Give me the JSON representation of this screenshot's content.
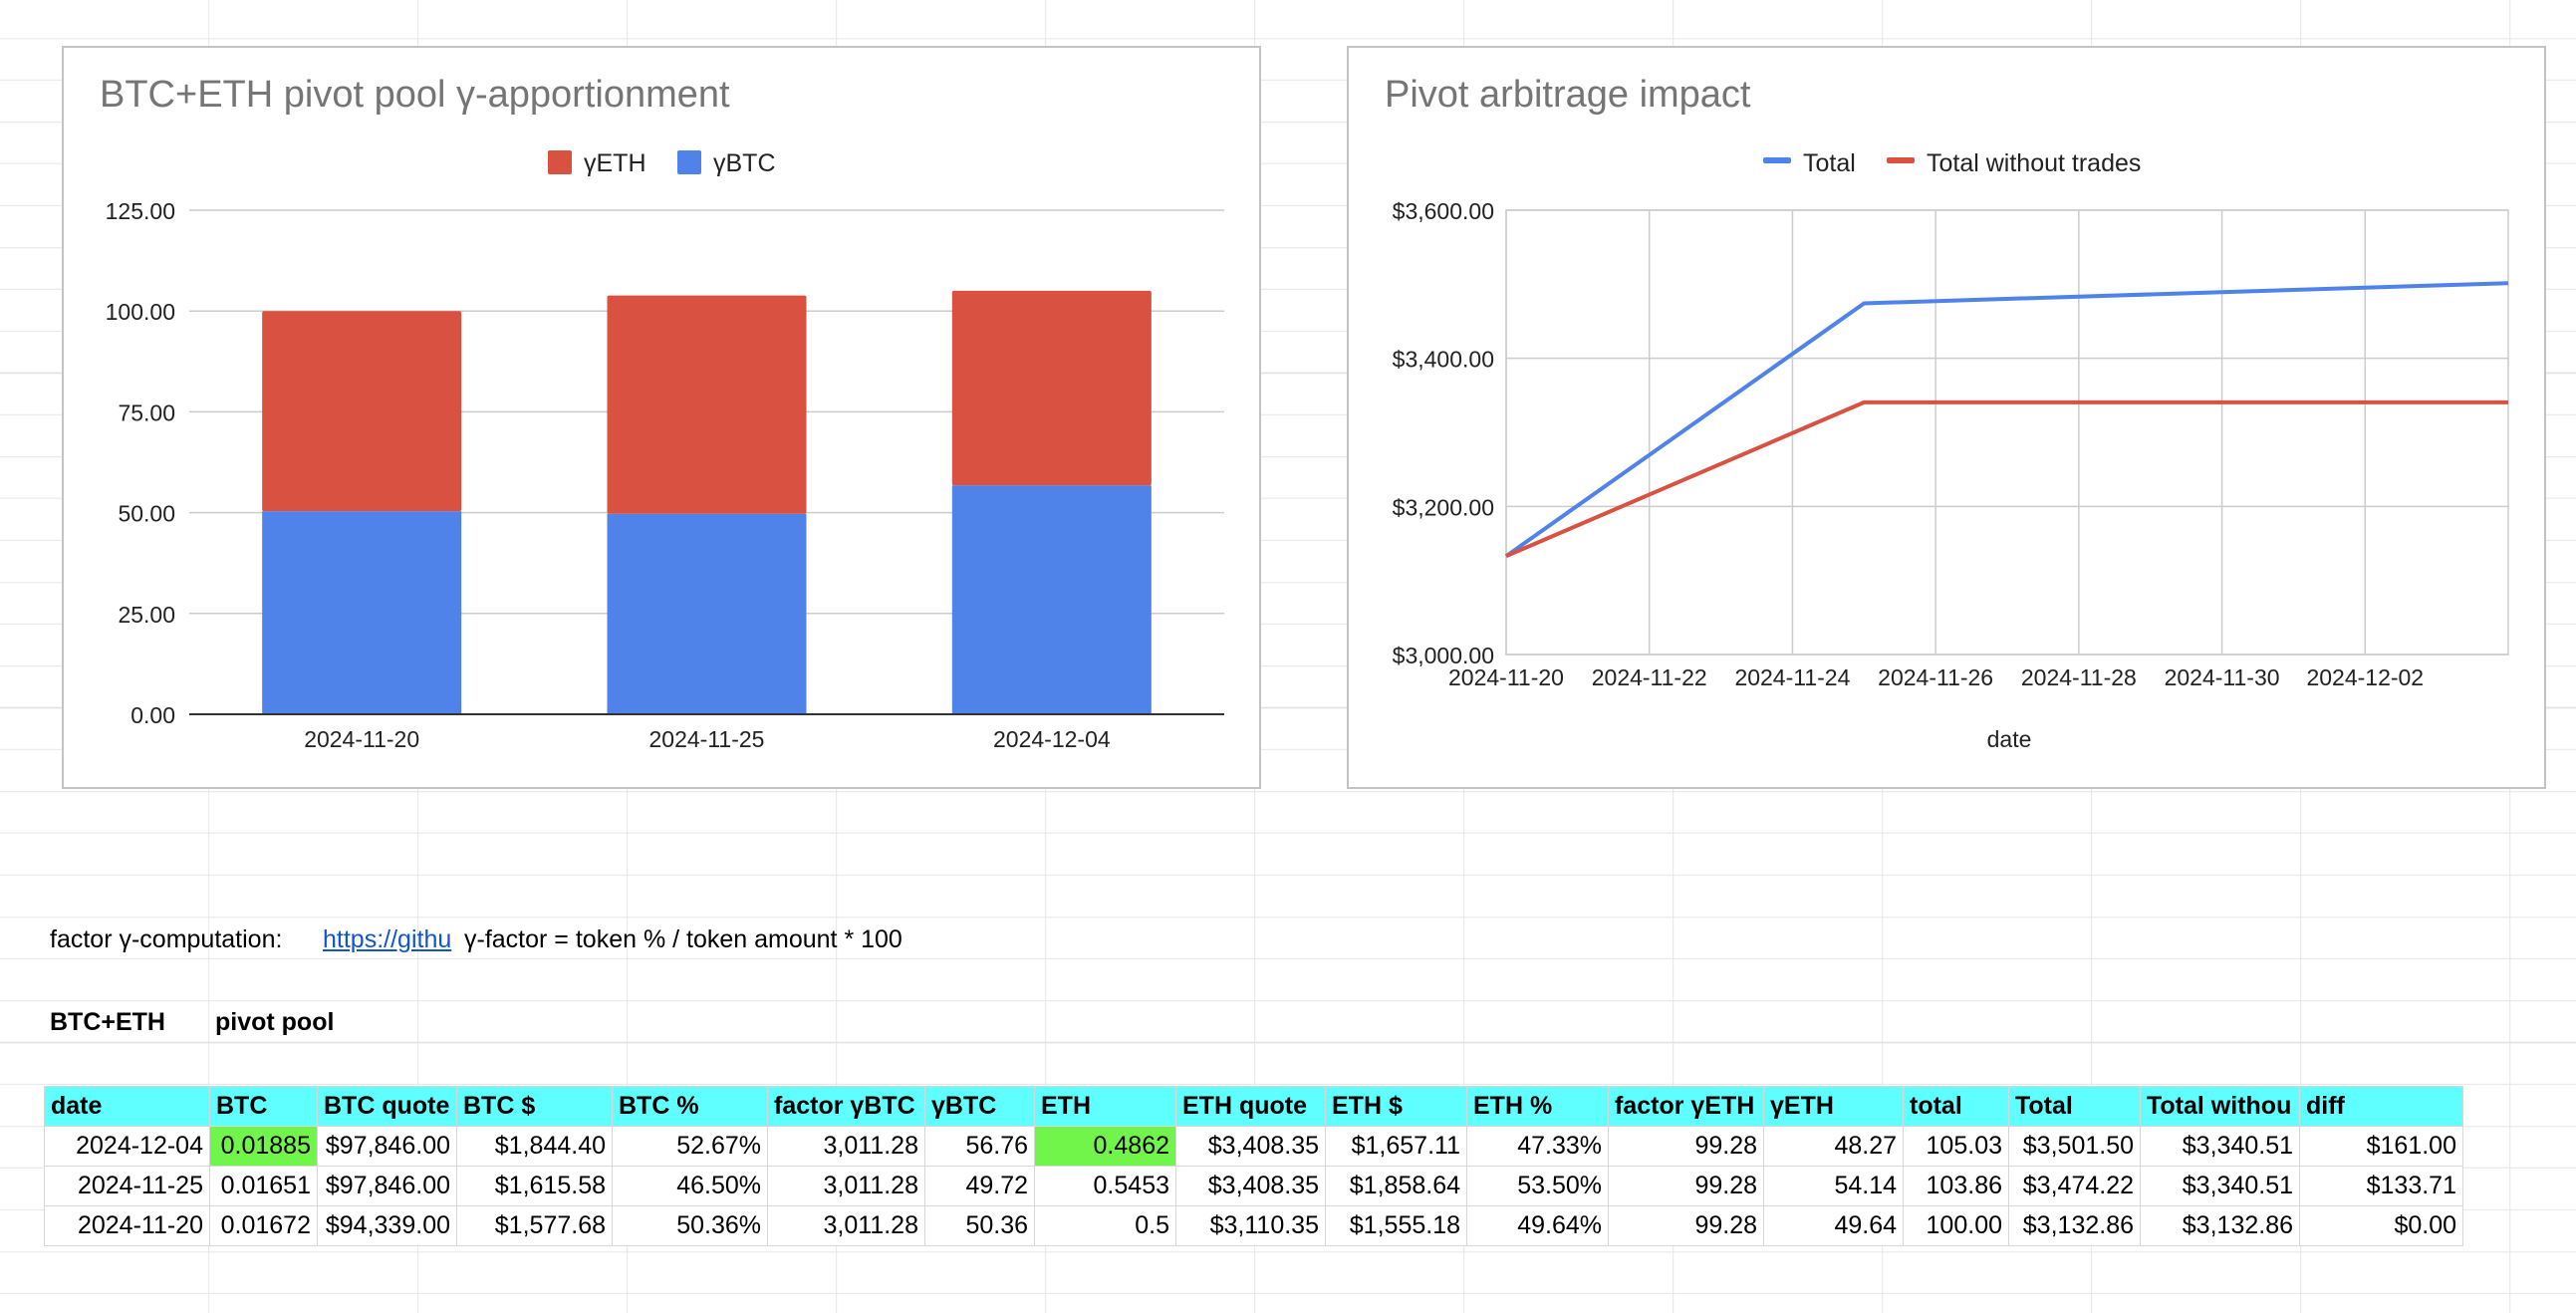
{
  "colors": {
    "eth_series": "#d95140",
    "btc_series": "#5083ea",
    "line_total": "#5083ea",
    "line_total_without": "#d95140",
    "header_fill": "#5fffff",
    "highlight_fill": "#71f54a",
    "link": "#1155cc"
  },
  "charts": {
    "bar": {
      "title": "BTC+ETH pivot pool γ-apportionment",
      "legend": [
        "γETH",
        "γBTC"
      ]
    },
    "line": {
      "title": "Pivot arbitrage impact",
      "legend": [
        "Total",
        "Total without trades"
      ],
      "xlabel": "date"
    }
  },
  "chart_data": [
    {
      "type": "bar",
      "stacked": true,
      "title": "BTC+ETH pivot pool γ-apportionment",
      "categories": [
        "2024-11-20",
        "2024-11-25",
        "2024-12-04"
      ],
      "series": [
        {
          "name": "γBTC",
          "values": [
            50.36,
            49.72,
            56.76
          ]
        },
        {
          "name": "γETH",
          "values": [
            49.64,
            54.14,
            48.27
          ]
        }
      ],
      "ylim": [
        0,
        125
      ],
      "yticks": [
        "0.00",
        "25.00",
        "50.00",
        "75.00",
        "100.00",
        "125.00"
      ],
      "legend_position": "top",
      "grid": true
    },
    {
      "type": "line",
      "title": "Pivot arbitrage impact",
      "xlabel": "date",
      "x": [
        "2024-11-20",
        "2024-11-25",
        "2024-12-04"
      ],
      "series": [
        {
          "name": "Total",
          "values": [
            3132.86,
            3474.22,
            3501.5
          ]
        },
        {
          "name": "Total without trades",
          "values": [
            3132.86,
            3340.51,
            3340.51
          ]
        }
      ],
      "xticks": [
        "2024-11-20",
        "2024-11-22",
        "2024-11-24",
        "2024-11-26",
        "2024-11-28",
        "2024-11-30",
        "2024-12-02"
      ],
      "xlim": [
        "2024-11-20",
        "2024-12-04"
      ],
      "ylim": [
        3000,
        3600
      ],
      "yticks": [
        "$3,000.00",
        "$3,200.00",
        "$3,400.00",
        "$3,600.00"
      ],
      "legend_position": "top",
      "grid": true
    }
  ],
  "sheet": {
    "factor_label": "factor γ-computation:",
    "factor_link": "https://githu",
    "factor_formula": "γ-factor = token % / token amount * 100",
    "pool_name": "BTC+ETH",
    "pool_type": "pivot pool",
    "headers": [
      "date",
      "BTC",
      "BTC quote",
      "BTC $",
      "BTC %",
      "factor γBTC",
      "γBTC",
      "ETH",
      "ETH quote",
      "ETH $",
      "ETH %",
      "factor γETH",
      "γETH",
      "total",
      "Total",
      "Total withou",
      "diff"
    ],
    "rows": [
      [
        "2024-12-04",
        "0.01885",
        "$97,846.00",
        "$1,844.40",
        "52.67%",
        "3,011.28",
        "56.76",
        "0.4862",
        "$3,408.35",
        "$1,657.11",
        "47.33%",
        "99.28",
        "48.27",
        "105.03",
        "$3,501.50",
        "$3,340.51",
        "$161.00"
      ],
      [
        "2024-11-25",
        "0.01651",
        "$97,846.00",
        "$1,615.58",
        "46.50%",
        "3,011.28",
        "49.72",
        "0.5453",
        "$3,408.35",
        "$1,858.64",
        "53.50%",
        "99.28",
        "54.14",
        "103.86",
        "$3,474.22",
        "$3,340.51",
        "$133.71"
      ],
      [
        "2024-11-20",
        "0.01672",
        "$94,339.00",
        "$1,577.68",
        "50.36%",
        "3,011.28",
        "50.36",
        "0.5",
        "$3,110.35",
        "$1,555.18",
        "49.64%",
        "99.28",
        "49.64",
        "100.00",
        "$3,132.86",
        "$3,132.86",
        "$0.00"
      ]
    ],
    "highlighted_cells": [
      [
        0,
        1
      ],
      [
        0,
        7
      ]
    ]
  }
}
